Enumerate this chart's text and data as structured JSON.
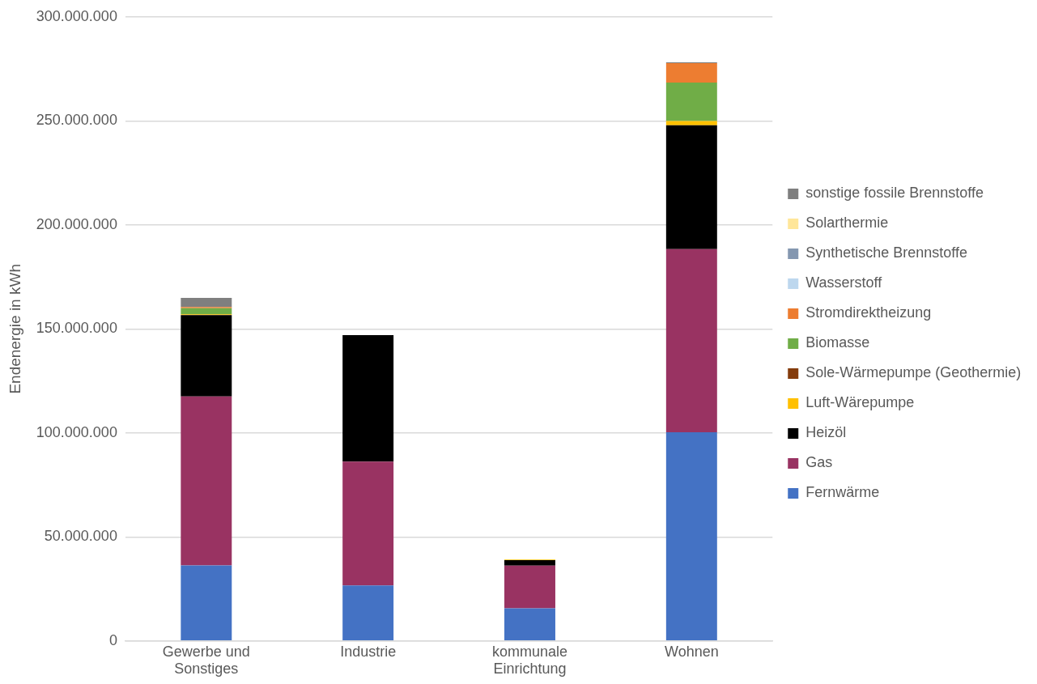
{
  "chart_data": {
    "type": "bar",
    "stacked": true,
    "ylabel": "Endenergie in kWh",
    "categories": [
      "Gewerbe und Sonstiges",
      "Industrie",
      "kommunale Einrichtung",
      "Wohnen"
    ],
    "ylim": [
      0,
      300000000
    ],
    "yticks": [
      0,
      {
        "value": 50000000,
        "label": "50.000.000"
      },
      {
        "value": 100000000,
        "label": "100.000.000"
      },
      {
        "value": 150000000,
        "label": "150.000.000"
      },
      {
        "value": 200000000,
        "label": "200.000.000"
      },
      {
        "value": 250000000,
        "label": "250.000.000"
      },
      {
        "value": 300000000,
        "label": "300.000.000"
      }
    ],
    "grid": "y",
    "legend": "right",
    "series": [
      {
        "name": "Fernwärme",
        "color": "#4472c4",
        "values": [
          36300000,
          26700000,
          15700000,
          100300000
        ]
      },
      {
        "name": "Gas",
        "color": "#993362",
        "values": [
          81200000,
          59500000,
          20500000,
          88000000
        ]
      },
      {
        "name": "Heizöl",
        "color": "#000000",
        "values": [
          39100000,
          60800000,
          2600000,
          59600000
        ]
      },
      {
        "name": "Luft-Wärepumpe",
        "color": "#ffc000",
        "values": [
          400000,
          0,
          300000,
          2000000
        ]
      },
      {
        "name": "Sole-Wärmepumpe (Geothermie)",
        "color": "#843c0c",
        "values": [
          0,
          0,
          0,
          0
        ]
      },
      {
        "name": "Biomasse",
        "color": "#70ad47",
        "values": [
          2900000,
          0,
          0,
          18500000
        ]
      },
      {
        "name": "Stromdirektheizung",
        "color": "#ed7d31",
        "values": [
          600000,
          0,
          0,
          9300000
        ]
      },
      {
        "name": "Wasserstoff",
        "color": "#bdd7ee",
        "values": [
          0,
          0,
          0,
          0
        ]
      },
      {
        "name": "Synthetische Brennstoffe",
        "color": "#8497b0",
        "values": [
          0,
          0,
          0,
          0
        ]
      },
      {
        "name": "Solarthermie",
        "color": "#ffe699",
        "values": [
          0,
          0,
          0,
          0
        ]
      },
      {
        "name": "sonstige fossile Brennstoffe",
        "color": "#7f7f7f",
        "values": [
          4400000,
          0,
          0,
          400000
        ]
      }
    ]
  }
}
